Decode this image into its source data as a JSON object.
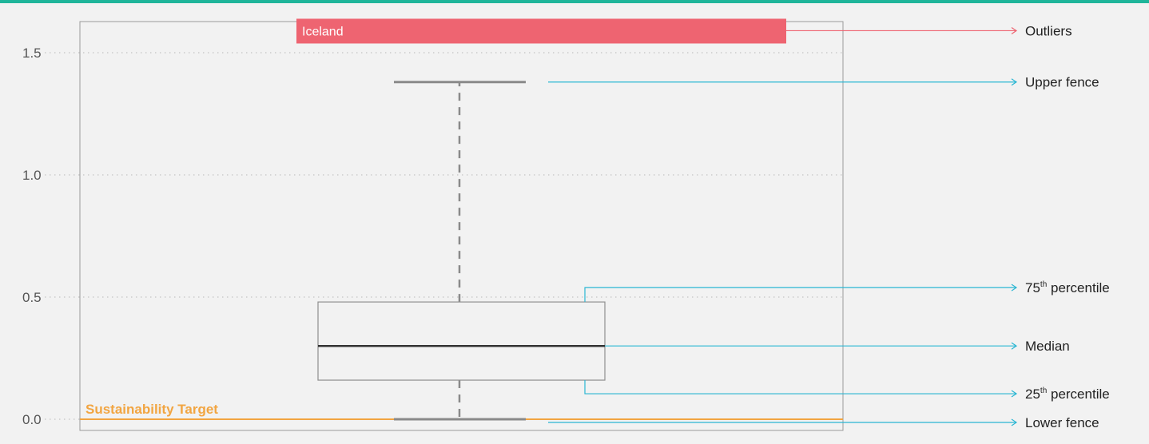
{
  "chart_data": {
    "type": "boxplot",
    "ylim": [
      -0.05,
      1.65
    ],
    "y_ticks": [
      {
        "value": 0.0,
        "label": "0.0"
      },
      {
        "value": 0.5,
        "label": "0.5"
      },
      {
        "value": 1.0,
        "label": "1.0"
      },
      {
        "value": 1.5,
        "label": "1.5"
      }
    ],
    "grid": "horizontal dotted",
    "box": {
      "lower_fence": 0.0,
      "q1": 0.16,
      "median": 0.3,
      "q3": 0.48,
      "upper_fence": 1.38
    },
    "outlier": {
      "label": "Iceland",
      "value": 1.59
    },
    "target": {
      "label": "Sustainability Target",
      "value": 0.0
    },
    "annotations": [
      {
        "key": "outliers",
        "text": "Outliers",
        "sup": ""
      },
      {
        "key": "upper_fence",
        "text": "Upper fence",
        "sup": ""
      },
      {
        "key": "q3",
        "text": "75",
        "sup": "th",
        "suffix": " percentile"
      },
      {
        "key": "median",
        "text": "Median",
        "sup": ""
      },
      {
        "key": "q1",
        "text": "25",
        "sup": "th",
        "suffix": " percentile"
      },
      {
        "key": "lower_fence",
        "text": "Lower fence",
        "sup": ""
      }
    ],
    "colors": {
      "accent_top": "#1fb59a",
      "outlier": "#ee6471",
      "annotation": "#29b6d3",
      "target": "#f2a541",
      "box": "#8f8f8f",
      "median": "#333333",
      "whisker": "#8a8a8a"
    }
  }
}
